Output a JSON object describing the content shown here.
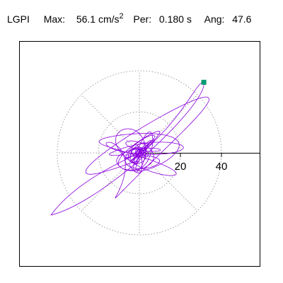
{
  "header": {
    "station": "LGPI",
    "max_label": "Max:",
    "max_value": "56.1 cm/s",
    "max_exponent": "2",
    "per_label": "Per:",
    "per_value": "0.180 s",
    "ang_label": "Ang:",
    "ang_value": "47.6"
  },
  "chart_data": {
    "type": "scatter",
    "title": "",
    "xlabel": "",
    "ylabel": "",
    "rings": [
      20,
      40
    ],
    "ring_labels": [
      "20",
      "40"
    ],
    "radial_spokes_deg": [
      0,
      45,
      90,
      135,
      180,
      225,
      270,
      315
    ],
    "grid": "dotted polar",
    "max_amplitude": 56.1,
    "max_angle_deg": 47.6,
    "series": [
      {
        "color": "#8b00e0"
      }
    ],
    "marker": {
      "shape": "square",
      "color": "#009b73"
    }
  }
}
